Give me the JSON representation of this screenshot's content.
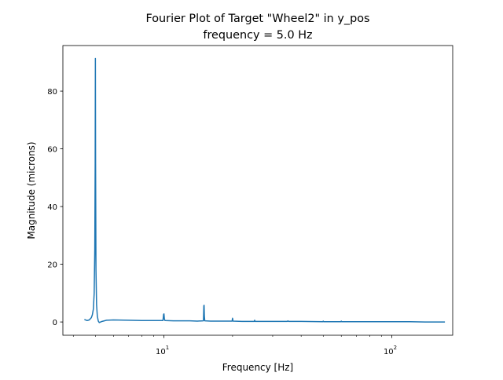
{
  "chart_data": {
    "type": "line",
    "title": "Fourier Plot of Target \"Wheel2\" in y_pos",
    "subtitle": "frequency = 5.0 Hz",
    "xlabel": "Frequency [Hz]",
    "ylabel": "Magnitude (microns)",
    "xscale": "log",
    "xlim": [
      3.6,
      185
    ],
    "ylim": [
      -4.6,
      95.8
    ],
    "x_major_ticks": [
      {
        "value": 10,
        "base": "10",
        "exp": "1"
      },
      {
        "value": 100,
        "base": "10",
        "exp": "2"
      }
    ],
    "x_minor_ticks": [
      4,
      5,
      6,
      7,
      8,
      9,
      20,
      30,
      40,
      50,
      60,
      70,
      80,
      90
    ],
    "y_ticks": [
      0,
      20,
      40,
      60,
      80
    ],
    "grid": false,
    "legend": "none",
    "line_color": "#1f77b4",
    "series": [
      {
        "x": [
          4.5,
          4.6,
          4.7,
          4.8,
          4.85,
          4.9,
          4.94,
          4.97,
          4.99,
          5.0,
          5.01,
          5.03,
          5.06,
          5.1,
          5.15,
          5.2,
          5.35,
          5.6,
          6.0,
          7.0,
          8.0,
          9.0,
          9.9,
          9.96,
          10.0,
          10.04,
          10.1,
          11.0,
          12.0,
          13.0,
          14.0,
          14.9,
          14.96,
          15.0,
          15.04,
          15.1,
          16.0,
          18.0,
          19.9,
          20.0,
          20.1,
          22.0,
          24.9,
          25.0,
          25.1,
          30.0,
          34.8,
          35.0,
          35.2,
          40.0,
          49.8,
          50.0,
          50.2,
          55.0,
          59.8,
          60.0,
          60.2,
          70.0,
          80.0,
          90.0,
          100.0,
          120.0,
          140.0,
          160.0,
          170.0
        ],
        "y": [
          0.8,
          0.5,
          0.7,
          1.5,
          2.5,
          4.5,
          10.0,
          25.0,
          55.0,
          91.3,
          55.0,
          18.0,
          6.0,
          2.0,
          0.3,
          -0.2,
          0.2,
          0.6,
          0.7,
          0.6,
          0.5,
          0.5,
          0.5,
          2.6,
          2.8,
          1.0,
          0.5,
          0.4,
          0.4,
          0.4,
          0.3,
          0.4,
          5.6,
          5.8,
          2.0,
          0.4,
          0.3,
          0.3,
          0.3,
          1.3,
          0.3,
          0.2,
          0.2,
          0.6,
          0.2,
          0.2,
          0.2,
          0.4,
          0.2,
          0.2,
          0.1,
          0.3,
          0.1,
          0.1,
          0.1,
          0.3,
          0.1,
          0.1,
          0.1,
          0.1,
          0.1,
          0.1,
          0.0,
          0.0,
          0.0
        ]
      }
    ]
  }
}
